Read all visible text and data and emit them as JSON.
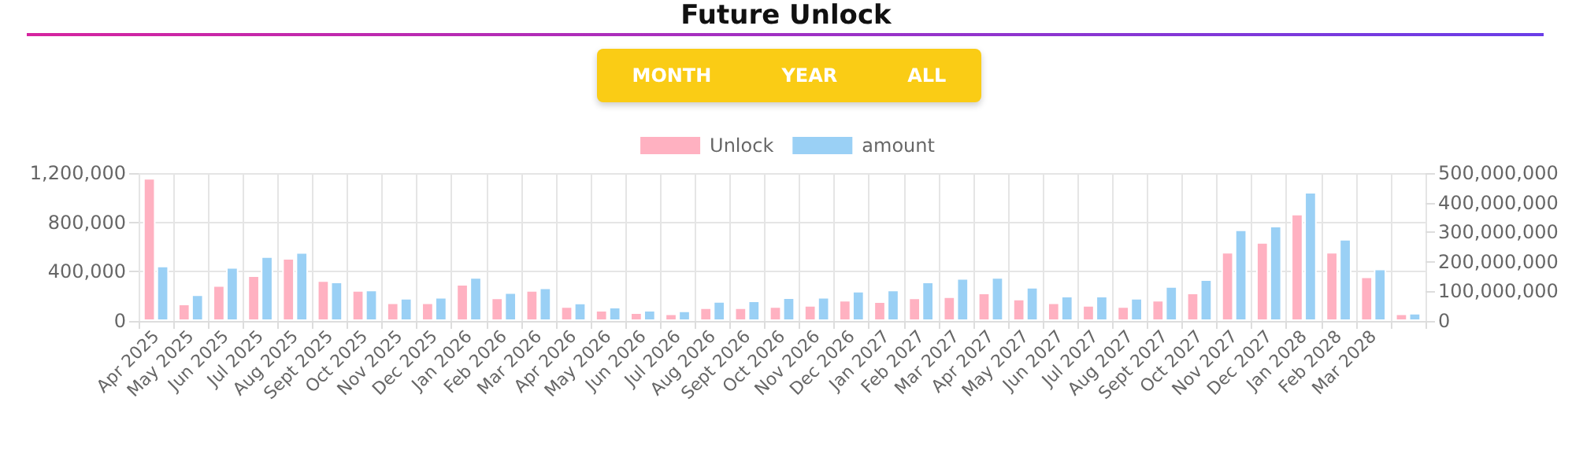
{
  "chart_data": {
    "type": "bar",
    "title": "Future Unlock",
    "annotations": [
      "MONTH",
      "YEAR",
      "ALL"
    ],
    "categories": [
      "Apr 2025",
      "May 2025",
      "Jun 2025",
      "Jul 2025",
      "Aug 2025",
      "Sept 2025",
      "Oct 2025",
      "Nov 2025",
      "Dec 2025",
      "Jan 2026",
      "Feb 2026",
      "Mar 2026",
      "Apr 2026",
      "May 2026",
      "Jun 2026",
      "Jul 2026",
      "Aug 2026",
      "Sept 2026",
      "Oct 2026",
      "Nov 2026",
      "Dec 2026",
      "Jan 2027",
      "Feb 2027",
      "Mar 2027",
      "Apr 2027",
      "May 2027",
      "Jun 2027",
      "Jul 2027",
      "Aug 2027",
      "Sept 2027",
      "Oct 2027",
      "Nov 2027",
      "Dec 2027",
      "Jan 2028",
      "Feb 2028",
      "Mar 2028",
      null
    ],
    "series": [
      {
        "name": "Unlock",
        "color": "#ffb1c1",
        "values": [
          1160000,
          140000,
          290000,
          370000,
          510000,
          330000,
          250000,
          150000,
          150000,
          300000,
          190000,
          250000,
          120000,
          90000,
          70000,
          60000,
          110000,
          110000,
          120000,
          130000,
          170000,
          160000,
          190000,
          200000,
          230000,
          180000,
          150000,
          130000,
          120000,
          170000,
          230000,
          560000,
          640000,
          870000,
          560000,
          360000,
          60000
        ]
      },
      {
        "name": "amount",
        "color": "#9ad0f5",
        "axis": "y2",
        "values": [
          187000000,
          90000000,
          182000000,
          219000000,
          233000000,
          133000000,
          106000000,
          78000000,
          81000000,
          148000000,
          97000000,
          113000000,
          62000000,
          48000000,
          37000000,
          35000000,
          67000000,
          69000000,
          80000000,
          81000000,
          102000000,
          106000000,
          133000000,
          145000000,
          148000000,
          115000000,
          85000000,
          85000000,
          78000000,
          118000000,
          141000000,
          309000000,
          322000000,
          436000000,
          277000000,
          177000000,
          27000000
        ]
      }
    ],
    "ylim": [
      0,
      1200000
    ],
    "yticks": [
      0,
      {
        "value": 400000,
        "label": "400,000"
      },
      {
        "value": 800000,
        "label": "800,000"
      },
      {
        "value": 1200000,
        "label": "1,200,000"
      }
    ],
    "y2lim": [
      0,
      500000000
    ],
    "y2ticks": [
      0,
      {
        "value": 100000000,
        "label": "100,000,000"
      },
      {
        "value": 200000000,
        "label": "200,000,000"
      },
      {
        "value": 300000000,
        "label": "300,000,000"
      },
      {
        "value": 400000000,
        "label": "400,000,000"
      },
      {
        "value": 500000000,
        "label": "500,000,000"
      }
    ],
    "grid": true,
    "legend": "top"
  }
}
